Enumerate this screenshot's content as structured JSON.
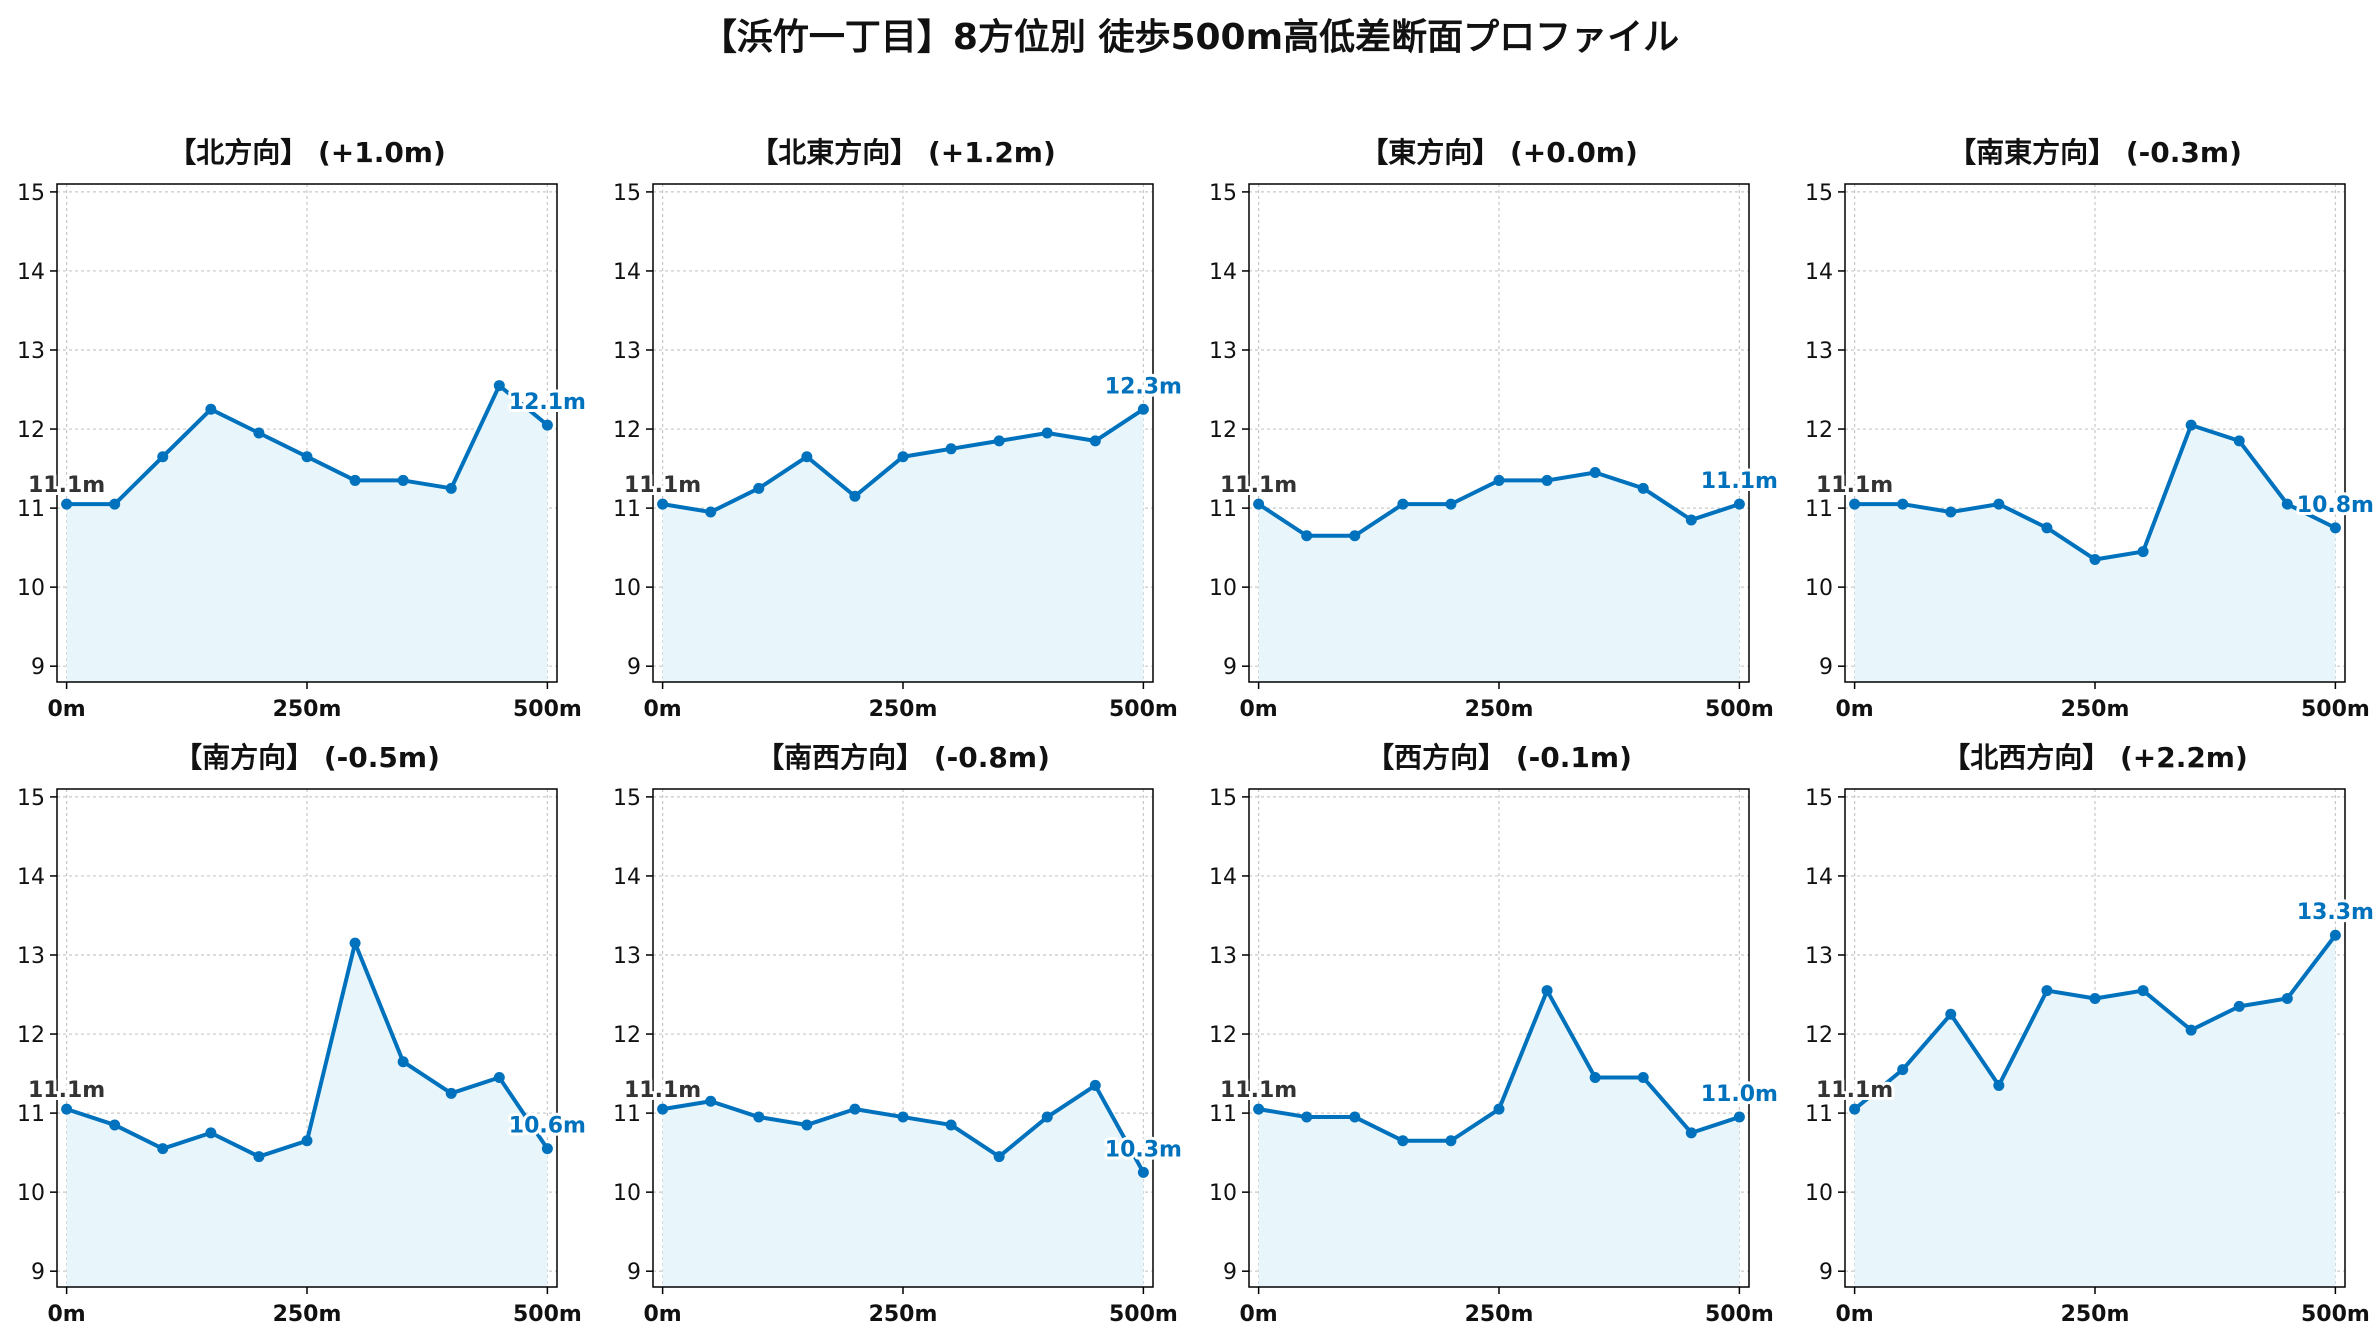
{
  "title": "【浜竹一丁目】8方位別 徒歩500m高低差断面プロファイル",
  "colors": {
    "line": "#0072bd",
    "fill": "#e8f6fc",
    "grid": "#c8c8c8",
    "axis": "#000000",
    "start_label": "#333333"
  },
  "chart_data": [
    {
      "type": "line",
      "title": "【北方向】 (+1.0m)",
      "x": [
        0,
        50,
        100,
        150,
        200,
        250,
        300,
        350,
        400,
        450,
        500
      ],
      "values": [
        11.05,
        11.05,
        11.65,
        12.25,
        11.95,
        11.65,
        11.35,
        11.35,
        11.25,
        12.55,
        12.05
      ],
      "start_label": "11.1m",
      "end_label": "12.1m",
      "ylim": [
        8.8,
        15.1
      ],
      "yticks": [
        "9",
        "10",
        "11",
        "12",
        "13",
        "14",
        "15"
      ],
      "xticks": [
        "0m",
        "250m",
        "500m"
      ],
      "grid": true
    },
    {
      "type": "line",
      "title": "【北東方向】 (+1.2m)",
      "x": [
        0,
        50,
        100,
        150,
        200,
        250,
        300,
        350,
        400,
        450,
        500
      ],
      "values": [
        11.05,
        10.95,
        11.25,
        11.65,
        11.15,
        11.65,
        11.75,
        11.85,
        11.95,
        11.85,
        12.25
      ],
      "start_label": "11.1m",
      "end_label": "12.3m",
      "ylim": [
        8.8,
        15.1
      ],
      "yticks": [
        "9",
        "10",
        "11",
        "12",
        "13",
        "14",
        "15"
      ],
      "xticks": [
        "0m",
        "250m",
        "500m"
      ],
      "grid": true
    },
    {
      "type": "line",
      "title": "【東方向】 (+0.0m)",
      "x": [
        0,
        50,
        100,
        150,
        200,
        250,
        300,
        350,
        400,
        450,
        500
      ],
      "values": [
        11.05,
        10.65,
        10.65,
        11.05,
        11.05,
        11.35,
        11.35,
        11.45,
        11.25,
        10.85,
        11.05
      ],
      "start_label": "11.1m",
      "end_label": "11.1m",
      "ylim": [
        8.8,
        15.1
      ],
      "yticks": [
        "9",
        "10",
        "11",
        "12",
        "13",
        "14",
        "15"
      ],
      "xticks": [
        "0m",
        "250m",
        "500m"
      ],
      "grid": true
    },
    {
      "type": "line",
      "title": "【南東方向】 (-0.3m)",
      "x": [
        0,
        50,
        100,
        150,
        200,
        250,
        300,
        350,
        400,
        450,
        500
      ],
      "values": [
        11.05,
        11.05,
        10.95,
        11.05,
        10.75,
        10.35,
        10.45,
        12.05,
        11.85,
        11.05,
        10.75
      ],
      "start_label": "11.1m",
      "end_label": "10.8m",
      "ylim": [
        8.8,
        15.1
      ],
      "yticks": [
        "9",
        "10",
        "11",
        "12",
        "13",
        "14",
        "15"
      ],
      "xticks": [
        "0m",
        "250m",
        "500m"
      ],
      "grid": true
    },
    {
      "type": "line",
      "title": "【南方向】 (-0.5m)",
      "x": [
        0,
        50,
        100,
        150,
        200,
        250,
        300,
        350,
        400,
        450,
        500
      ],
      "values": [
        11.05,
        10.85,
        10.55,
        10.75,
        10.45,
        10.65,
        13.15,
        11.65,
        11.25,
        11.45,
        10.55
      ],
      "start_label": "11.1m",
      "end_label": "10.6m",
      "ylim": [
        8.8,
        15.1
      ],
      "yticks": [
        "9",
        "10",
        "11",
        "12",
        "13",
        "14",
        "15"
      ],
      "xticks": [
        "0m",
        "250m",
        "500m"
      ],
      "grid": true
    },
    {
      "type": "line",
      "title": "【南西方向】 (-0.8m)",
      "x": [
        0,
        50,
        100,
        150,
        200,
        250,
        300,
        350,
        400,
        450,
        500
      ],
      "values": [
        11.05,
        11.15,
        10.95,
        10.85,
        11.05,
        10.95,
        10.85,
        10.45,
        10.95,
        11.35,
        10.25
      ],
      "start_label": "11.1m",
      "end_label": "10.3m",
      "ylim": [
        8.8,
        15.1
      ],
      "yticks": [
        "9",
        "10",
        "11",
        "12",
        "13",
        "14",
        "15"
      ],
      "xticks": [
        "0m",
        "250m",
        "500m"
      ],
      "grid": true
    },
    {
      "type": "line",
      "title": "【西方向】 (-0.1m)",
      "x": [
        0,
        50,
        100,
        150,
        200,
        250,
        300,
        350,
        400,
        450,
        500
      ],
      "values": [
        11.05,
        10.95,
        10.95,
        10.65,
        10.65,
        11.05,
        12.55,
        11.45,
        11.45,
        10.75,
        10.95
      ],
      "start_label": "11.1m",
      "end_label": "11.0m",
      "ylim": [
        8.8,
        15.1
      ],
      "yticks": [
        "9",
        "10",
        "11",
        "12",
        "13",
        "14",
        "15"
      ],
      "xticks": [
        "0m",
        "250m",
        "500m"
      ],
      "grid": true
    },
    {
      "type": "line",
      "title": "【北西方向】 (+2.2m)",
      "x": [
        0,
        50,
        100,
        150,
        200,
        250,
        300,
        350,
        400,
        450,
        500
      ],
      "values": [
        11.05,
        11.55,
        12.25,
        11.35,
        12.55,
        12.45,
        12.55,
        12.05,
        12.35,
        12.45,
        13.25
      ],
      "start_label": "11.1m",
      "end_label": "13.3m",
      "ylim": [
        8.8,
        15.1
      ],
      "yticks": [
        "9",
        "10",
        "11",
        "12",
        "13",
        "14",
        "15"
      ],
      "xticks": [
        "0m",
        "250m",
        "500m"
      ],
      "grid": true
    }
  ]
}
